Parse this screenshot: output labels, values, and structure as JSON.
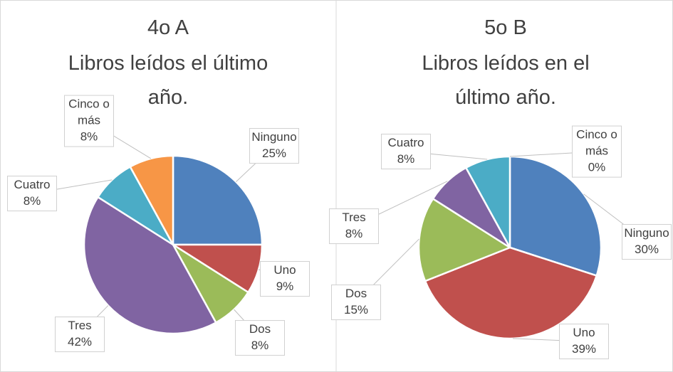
{
  "chart_data": [
    {
      "type": "pie",
      "title": [
        "4o A",
        "Libros leídos el último",
        "año."
      ],
      "categories": [
        "Ninguno",
        "Uno",
        "Dos",
        "Tres",
        "Cuatro",
        "Cinco o más"
      ],
      "values": [
        25,
        9,
        8,
        42,
        8,
        8
      ],
      "value_labels": [
        "25%",
        "9%",
        "8%",
        "42%",
        "8%",
        "8%"
      ],
      "colors": [
        "#4f81bd",
        "#c0504d",
        "#9bbb59",
        "#8064a2",
        "#4bacc6",
        "#f79646"
      ]
    },
    {
      "type": "pie",
      "title": [
        "5o B",
        "Libros leídos en el",
        "último año."
      ],
      "categories": [
        "Ninguno",
        "Uno",
        "Dos",
        "Tres",
        "Cuatro",
        "Cinco o más"
      ],
      "values": [
        30,
        39,
        15,
        8,
        8,
        0
      ],
      "value_labels": [
        "30%",
        "39%",
        "15%",
        "8%",
        "8%",
        "0%"
      ],
      "colors": [
        "#4f81bd",
        "#c0504d",
        "#9bbb59",
        "#8064a2",
        "#4bacc6",
        "#f79646"
      ]
    }
  ]
}
